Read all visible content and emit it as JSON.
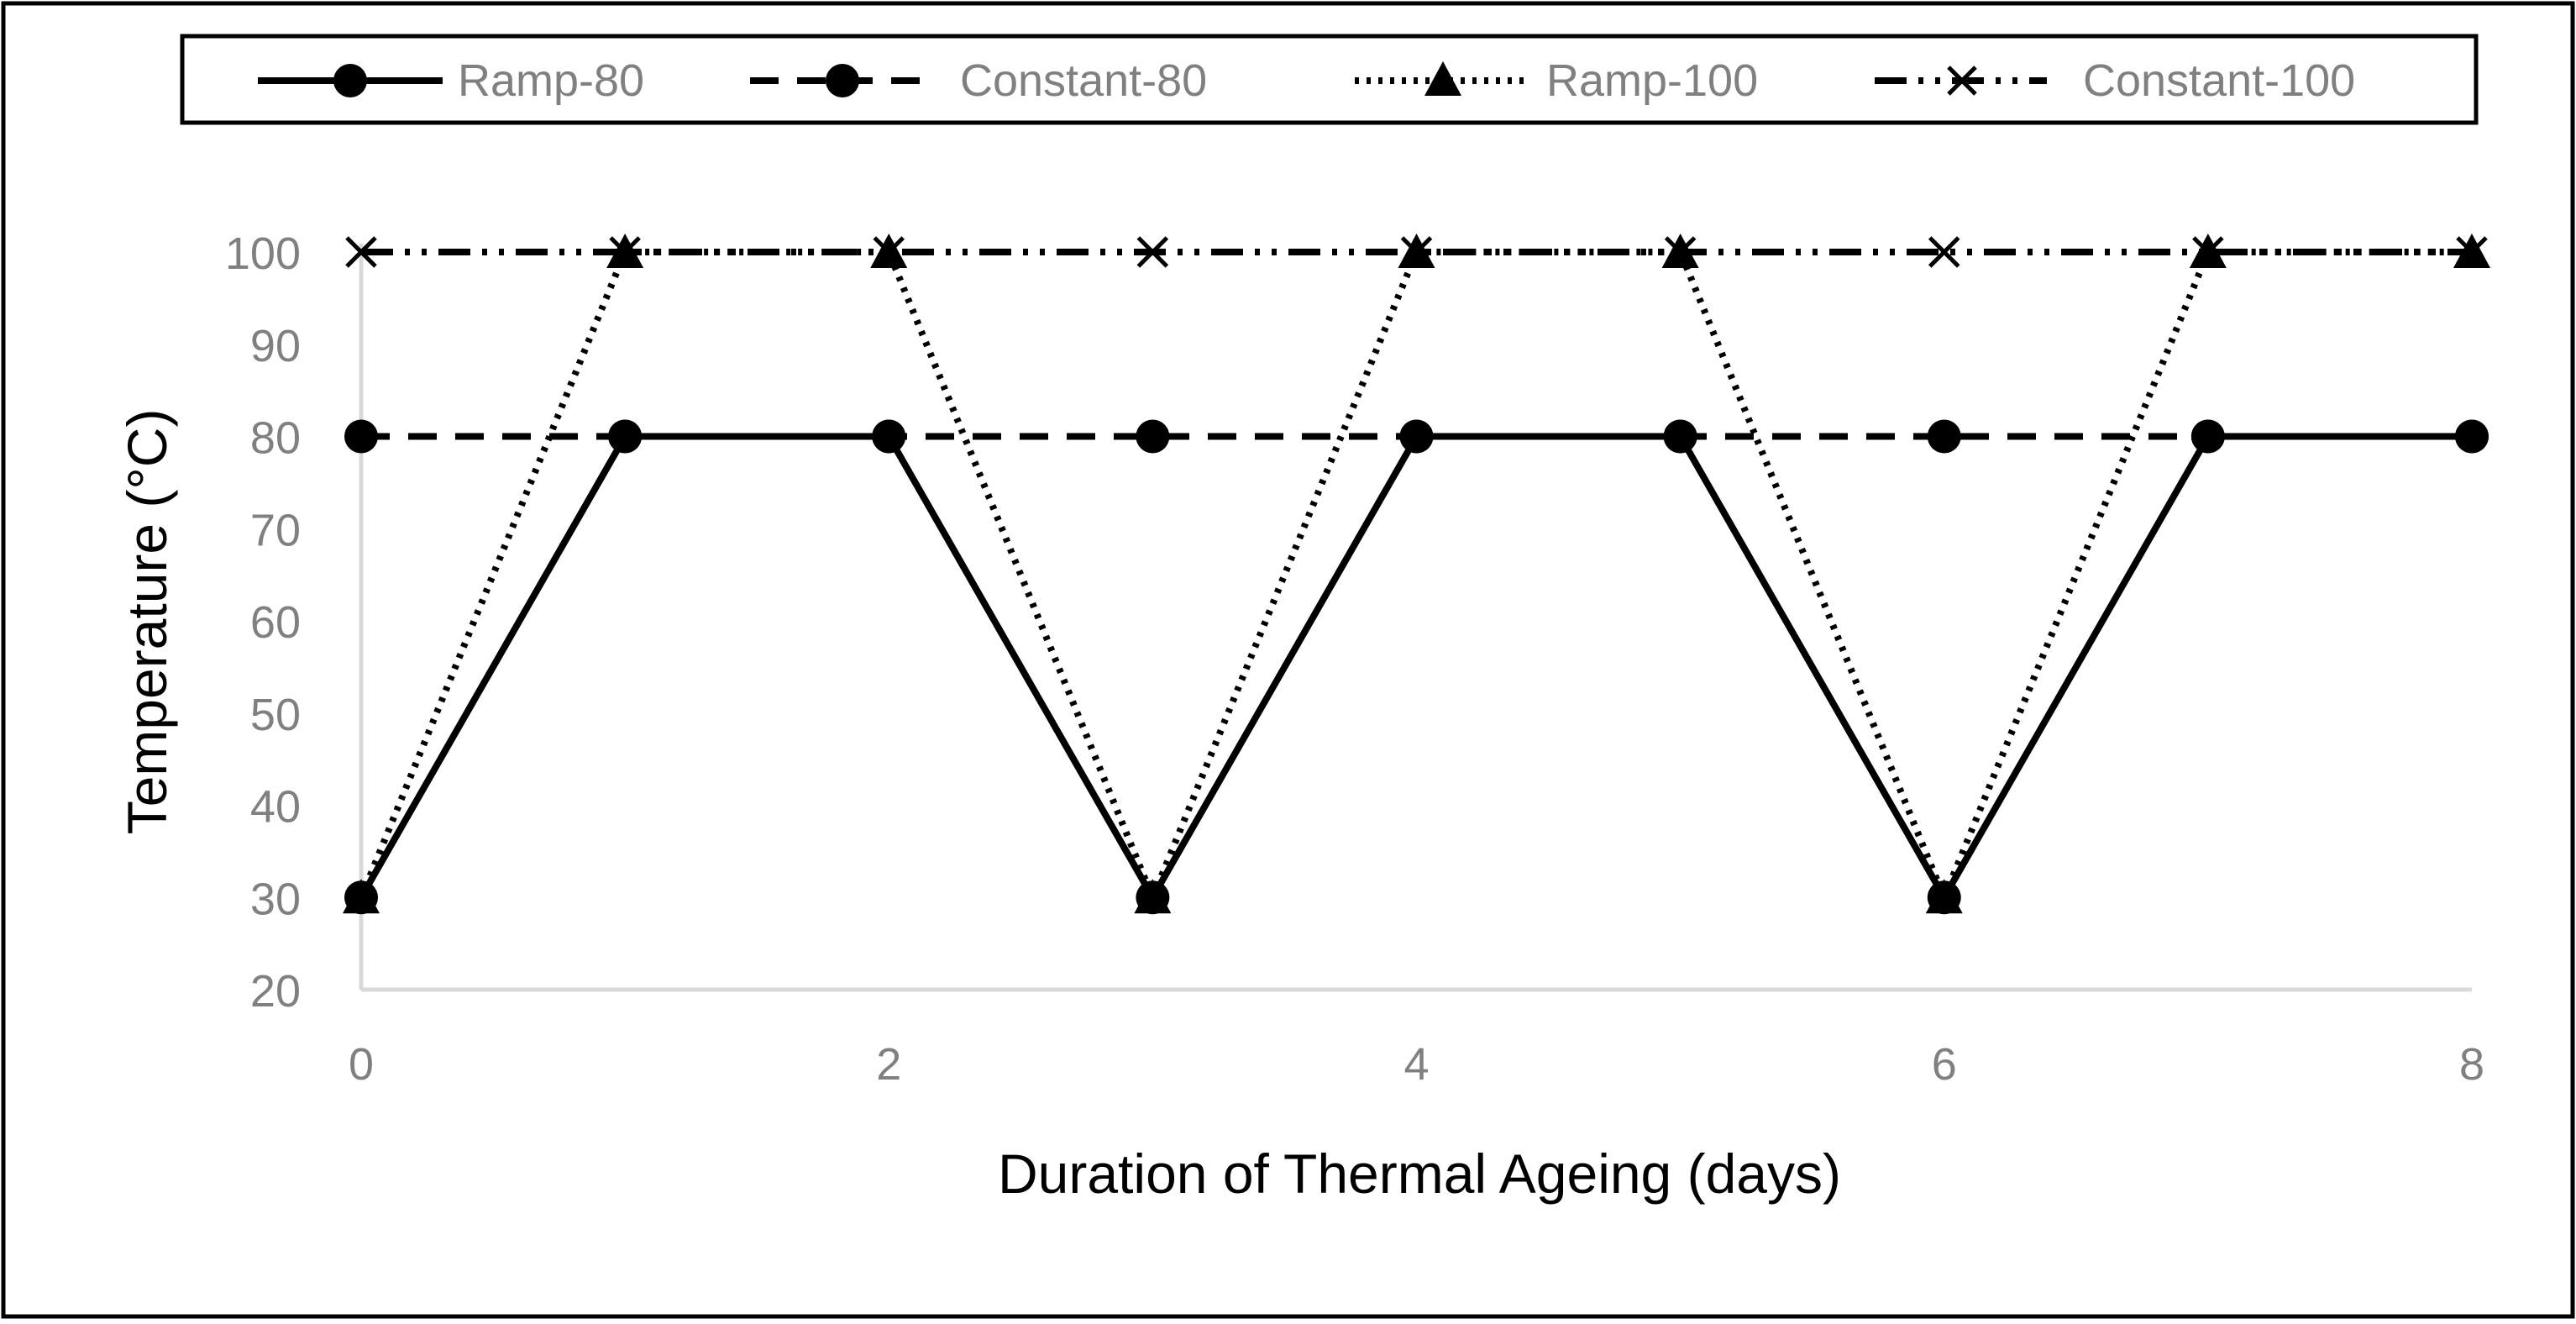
{
  "chart_data": {
    "type": "line",
    "title": "",
    "xlabel": "Duration of Thermal Ageing (days)",
    "ylabel": "Temperature (°C)",
    "xlim": [
      0,
      8
    ],
    "ylim": [
      20,
      100
    ],
    "xticks": [
      0,
      2,
      4,
      6,
      8
    ],
    "yticks": [
      20,
      30,
      40,
      50,
      60,
      70,
      80,
      90,
      100
    ],
    "grid": false,
    "legend_position": "top",
    "x": [
      0,
      1,
      2,
      3,
      4,
      5,
      6,
      7,
      8
    ],
    "series": [
      {
        "name": "Ramp-80",
        "values": [
          30,
          80,
          80,
          30,
          80,
          80,
          30,
          80,
          80
        ],
        "line_style": "solid",
        "marker": "circle",
        "color": "#000000"
      },
      {
        "name": "Constant-80",
        "values": [
          80,
          80,
          80,
          80,
          80,
          80,
          80,
          80,
          80
        ],
        "line_style": "dashed",
        "marker": "circle",
        "color": "#000000"
      },
      {
        "name": "Ramp-100",
        "values": [
          30,
          100,
          100,
          30,
          100,
          100,
          30,
          100,
          100
        ],
        "line_style": "dotted",
        "marker": "triangle",
        "color": "#000000"
      },
      {
        "name": "Constant-100",
        "values": [
          100,
          100,
          100,
          100,
          100,
          100,
          100,
          100,
          100
        ],
        "line_style": "dash-dot-dot",
        "marker": "x",
        "color": "#000000"
      }
    ],
    "colors": {
      "axis": "#d9d9d9",
      "tick_label": "#808080",
      "axis_title": "#000000",
      "legend_text": "#808080",
      "frame": "#000000"
    }
  }
}
